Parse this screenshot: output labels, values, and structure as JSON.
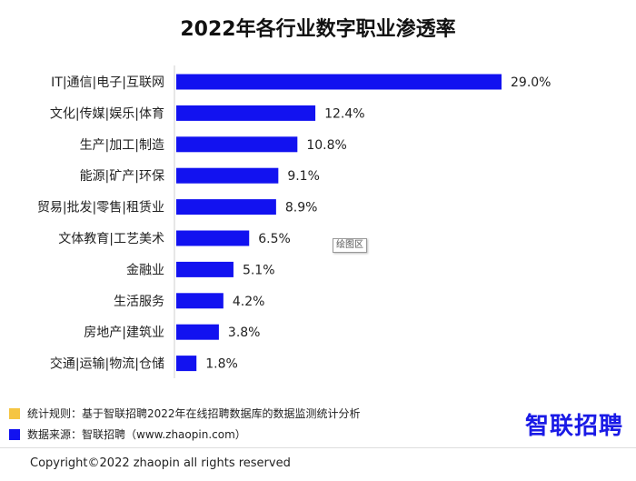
{
  "chart_data": {
    "type": "bar",
    "orientation": "horizontal",
    "title": "2022年各行业数字职业渗透率",
    "categories": [
      "IT|通信|电子|互联网",
      "文化|传媒|娱乐|体育",
      "生产|加工|制造",
      "能源|矿产|环保",
      "贸易|批发|零售|租赁业",
      "文体教育|工艺美术",
      "金融业",
      "生活服务",
      "房地产|建筑业",
      "交通|运输|物流|仓储"
    ],
    "values": [
      29.0,
      12.4,
      10.8,
      9.1,
      8.9,
      6.5,
      5.1,
      4.2,
      3.8,
      1.8
    ],
    "value_labels": [
      "29.0%",
      "12.4%",
      "10.8%",
      "9.1%",
      "8.9%",
      "6.5%",
      "5.1%",
      "4.2%",
      "3.8%",
      "1.8%"
    ],
    "unit": "%",
    "grid": false,
    "legend": "none",
    "bar_color": "#1212f0"
  },
  "plot_area_tag": "绘图区",
  "notes": {
    "rule": {
      "text": "统计规则：基于智联招聘2022年在线招聘数据库的数据监测统计分析",
      "color": "#f5c542"
    },
    "source": {
      "text": "数据来源：智联招聘（www.zhaopin.com）",
      "color": "#1212f0"
    }
  },
  "brand": {
    "logo_text": "智联招聘",
    "color": "#1a1ae6"
  },
  "footer": {
    "copyright": "Copyright©2022 zhaopin all rights reserved"
  }
}
